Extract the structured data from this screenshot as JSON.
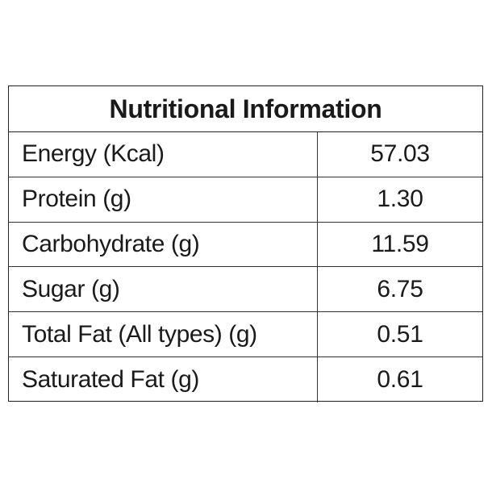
{
  "table": {
    "title": "Nutritional Information",
    "rows": [
      {
        "label": "Energy (Kcal)",
        "value": "57.03"
      },
      {
        "label": "Protein (g)",
        "value": "1.30"
      },
      {
        "label": "Carbohydrate (g)",
        "value": "11.59"
      },
      {
        "label": "Sugar (g)",
        "value": "6.75"
      },
      {
        "label": "Total Fat (All types) (g)",
        "value": "0.51"
      },
      {
        "label": "Saturated Fat (g)",
        "value": "0.61"
      }
    ]
  }
}
